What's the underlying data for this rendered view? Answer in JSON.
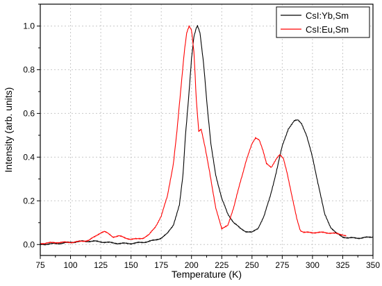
{
  "chart_data": {
    "type": "line",
    "title": "",
    "xlabel": "Temperature (K)",
    "ylabel": "Intensity (arb. units)",
    "xlim": [
      75,
      350
    ],
    "ylim": [
      -0.05,
      1.1
    ],
    "x_ticks": [
      75,
      100,
      125,
      150,
      175,
      200,
      225,
      250,
      275,
      300,
      325,
      350
    ],
    "y_ticks": [
      0.0,
      0.2,
      0.4,
      0.6,
      0.8,
      1.0
    ],
    "x_tick_labels": [
      "75",
      "100",
      "125",
      "150",
      "175",
      "200",
      "225",
      "250",
      "275",
      "300",
      "325",
      "350"
    ],
    "y_tick_labels": [
      "0.0",
      "0.2",
      "0.4",
      "0.6",
      "0.8",
      "1.0"
    ],
    "grid": true,
    "legend_position": "top-right",
    "series": [
      {
        "name": "CsI:Yb,Sm",
        "color": "#000000",
        "x": [
          75,
          90,
          100,
          110,
          120,
          130,
          140,
          150,
          160,
          170,
          175,
          180,
          185,
          190,
          193,
          195,
          198,
          200,
          202,
          204,
          205,
          207,
          210,
          213,
          216,
          220,
          225,
          230,
          235,
          240,
          245,
          250,
          255,
          260,
          265,
          270,
          275,
          280,
          285,
          288,
          291,
          295,
          300,
          305,
          310,
          315,
          320,
          325,
          330,
          340,
          350
        ],
        "y": [
          0.0,
          0.005,
          0.01,
          0.015,
          0.015,
          0.01,
          0.005,
          0.005,
          0.01,
          0.02,
          0.03,
          0.05,
          0.09,
          0.18,
          0.32,
          0.5,
          0.7,
          0.85,
          0.95,
          0.99,
          1.0,
          0.97,
          0.83,
          0.63,
          0.46,
          0.32,
          0.21,
          0.14,
          0.1,
          0.075,
          0.06,
          0.055,
          0.075,
          0.13,
          0.22,
          0.33,
          0.45,
          0.53,
          0.565,
          0.57,
          0.555,
          0.5,
          0.4,
          0.27,
          0.14,
          0.08,
          0.05,
          0.035,
          0.03,
          0.03,
          0.035
        ]
      },
      {
        "name": "CsI:Eu,Sm",
        "color": "#ff0000",
        "x": [
          75,
          90,
          100,
          110,
          115,
          120,
          125,
          128,
          131,
          135,
          140,
          145,
          150,
          155,
          160,
          165,
          170,
          175,
          180,
          185,
          188,
          191,
          194,
          196,
          198,
          200,
          202,
          204,
          206,
          208,
          211,
          215,
          220,
          225,
          230,
          235,
          240,
          245,
          250,
          253,
          256,
          259,
          262,
          266,
          270,
          273,
          276,
          279,
          283,
          287,
          290,
          293,
          296,
          300,
          310,
          320,
          325,
          328
        ],
        "y": [
          0.005,
          0.01,
          0.01,
          0.015,
          0.02,
          0.035,
          0.055,
          0.06,
          0.05,
          0.035,
          0.04,
          0.03,
          0.025,
          0.025,
          0.03,
          0.045,
          0.08,
          0.13,
          0.22,
          0.37,
          0.52,
          0.7,
          0.88,
          0.97,
          1.0,
          0.98,
          0.88,
          0.66,
          0.52,
          0.53,
          0.45,
          0.33,
          0.17,
          0.07,
          0.09,
          0.17,
          0.28,
          0.38,
          0.46,
          0.49,
          0.48,
          0.43,
          0.37,
          0.355,
          0.39,
          0.41,
          0.395,
          0.33,
          0.22,
          0.12,
          0.065,
          0.055,
          0.055,
          0.055,
          0.055,
          0.05,
          0.045,
          0.04
        ]
      }
    ]
  }
}
